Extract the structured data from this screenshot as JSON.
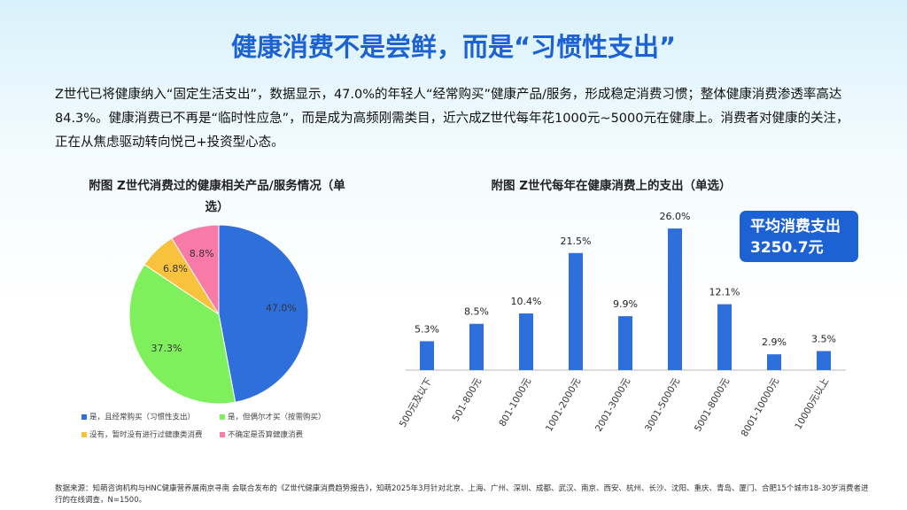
{
  "title": "健康消费不是尝鲜，而是“习惯性支出”",
  "intro": "Z世代已将健康纳入“固定生活支出”，数据显示，47.0%的年轻人“经常购买”健康产品/服务，形成稳定消费习惯；整体健康消费渗透率高达84.3%。健康消费已不再是“临时性应急”，而是成为高频刚需类目，近六成Z世代每年花1000元~5000元在健康上。消费者对健康的关注，正在从焦虑驱动转向悦己+投资型心态。",
  "source": "数据来源：知萌咨询机构与HNC健康营养展南京寻南 会联合发布的《Z世代健康消费趋势报告》，知萌2025年3月针对北京、上海、广州、深圳、成都、武汉、南京、西安、杭州、长沙、沈阳、重庆、青岛、厦门、合肥15个城市18-30岁消费者进行的在线调查，N=1500。",
  "chart_data": [
    {
      "type": "pie",
      "title": "附图  Z世代消费过的健康相关产品/服务情况（单选）",
      "categories": [
        "是，且经常购买（习惯性支出）",
        "是，但偶尔才买（按需购买）",
        "没有，暂时没有进行过健康类消费",
        "不确定是否算健康消费"
      ],
      "values": [
        47.0,
        37.3,
        6.8,
        8.8
      ],
      "value_labels": [
        "47.0%",
        "37.3%",
        "6.8%",
        "8.8%"
      ],
      "colors": [
        "#2f6fdc",
        "#7ef05c",
        "#f9c23c",
        "#f77aa7"
      ]
    },
    {
      "type": "bar",
      "title": "附图  Z世代每年在健康消费上的支出（单选）",
      "categories": [
        "500元及以下",
        "501-800元",
        "801-1000元",
        "1001-2000元",
        "2001-3000元",
        "3001-5000元",
        "5001-8000元",
        "8001-10000元",
        "10000元以上"
      ],
      "values": [
        5.3,
        8.5,
        10.4,
        21.5,
        9.9,
        26.0,
        12.1,
        2.9,
        3.5
      ],
      "value_labels": [
        "5.3%",
        "8.5%",
        "10.4%",
        "21.5%",
        "9.9%",
        "26.0%",
        "12.1%",
        "2.9%",
        "3.5%"
      ],
      "color": "#2f6fdc",
      "annotation": [
        "平均消费支出",
        "3250.7元"
      ]
    }
  ]
}
